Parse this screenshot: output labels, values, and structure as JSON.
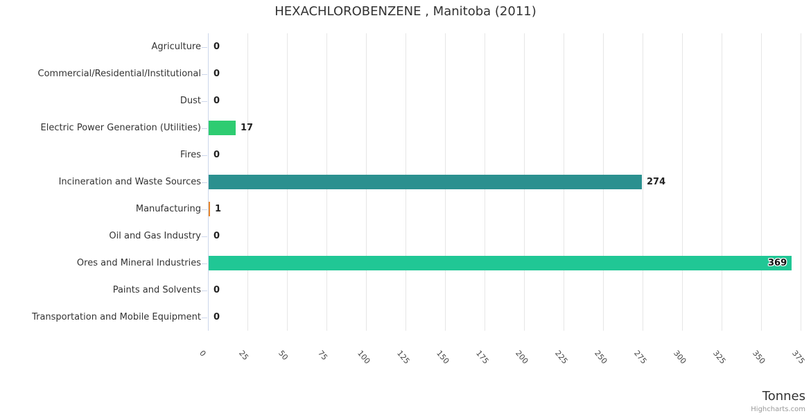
{
  "title": "HEXACHLOROBENZENE , Manitoba (2011)",
  "axis_title": "Tonnes",
  "credits": "Highcharts.com",
  "chart_data": {
    "type": "bar",
    "title": "HEXACHLOROBENZENE , Manitoba (2011)",
    "categories": [
      "Agriculture",
      "Commercial/Residential/Institutional",
      "Dust",
      "Electric Power Generation (Utilities)",
      "Fires",
      "Incineration and Waste Sources",
      "Manufacturing",
      "Oil and Gas Industry",
      "Ores and Mineral Industries",
      "Paints and Solvents",
      "Transportation and Mobile Equipment"
    ],
    "values": [
      0,
      0,
      0,
      17,
      0,
      274,
      1,
      0,
      369,
      0,
      0
    ],
    "bar_colors": [
      null,
      null,
      null,
      "#2ecc71",
      null,
      "#2b908f",
      "#e8862c",
      null,
      "#20c795",
      null,
      null
    ],
    "xlabel": "Tonnes",
    "ylabel": "",
    "xlim": [
      0,
      375
    ],
    "tick_interval": 25,
    "tick_labels": [
      "0",
      "25",
      "50",
      "75",
      "100",
      "125",
      "150",
      "175",
      "200",
      "225",
      "250",
      "275",
      "300",
      "325",
      "350",
      "375"
    ],
    "grid": true,
    "legend": false,
    "colors": {
      "axis_line": "#ccd6eb",
      "gridline": "#e6e6e6",
      "category_text": "#333333",
      "data_label_text": "#222222",
      "tick_label_text": "#444444",
      "title_text": "#333333",
      "credits_text": "#999999"
    }
  }
}
